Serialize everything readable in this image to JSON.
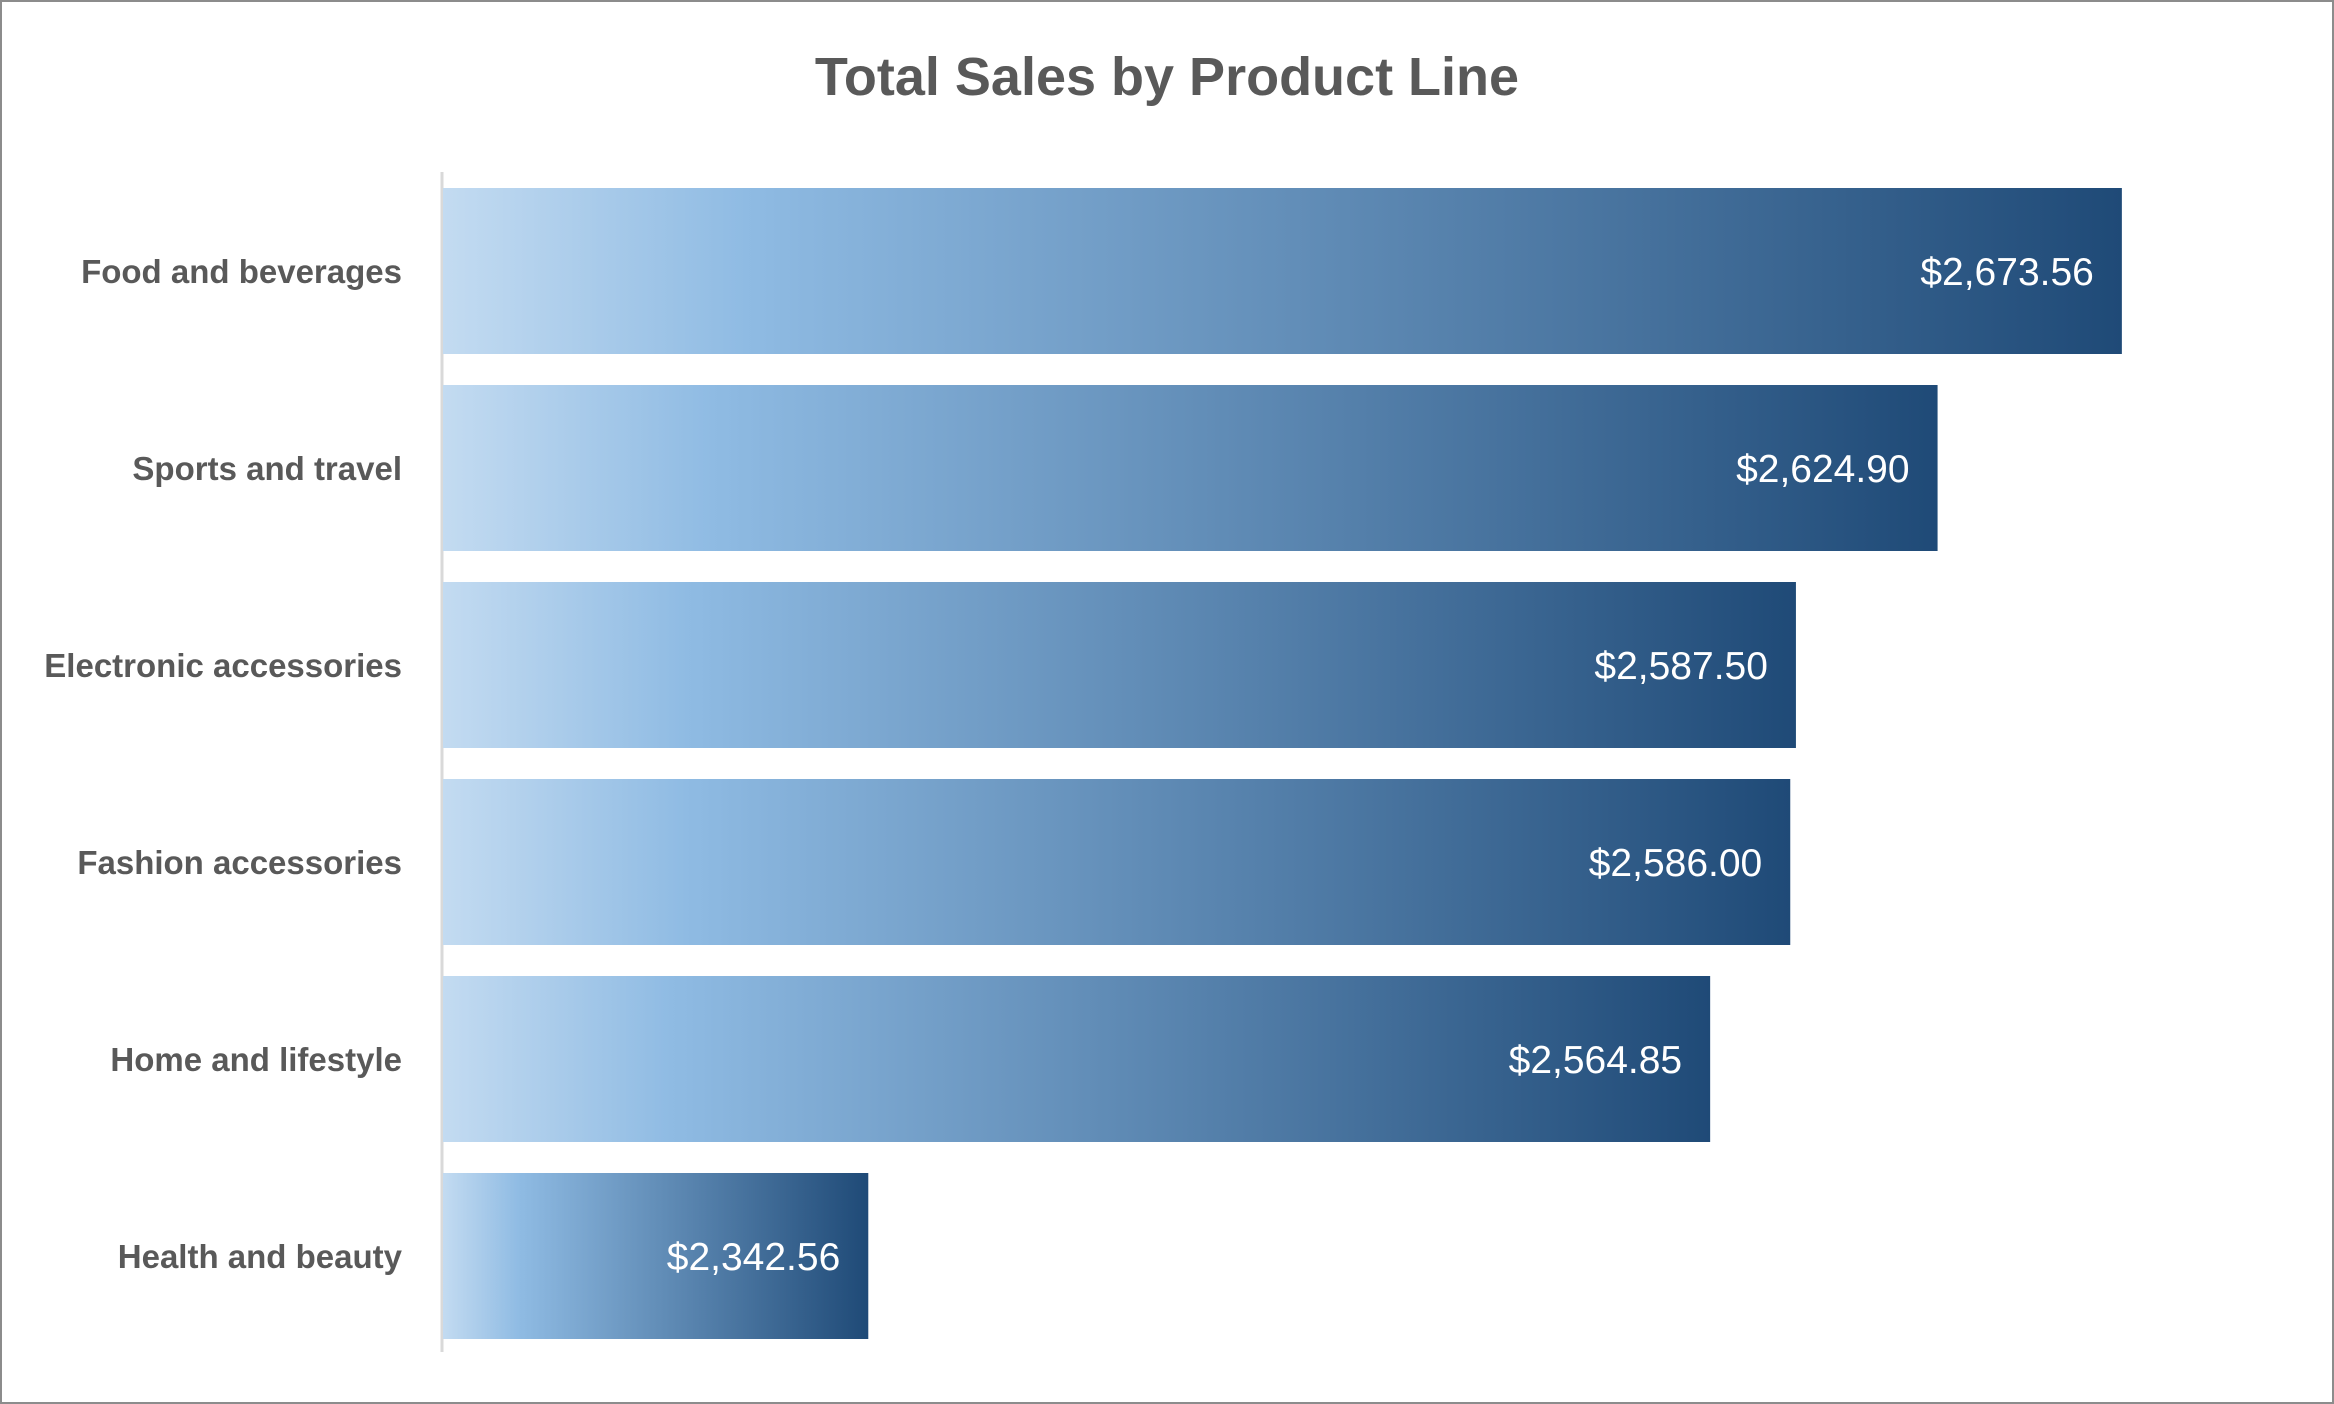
{
  "chart_data": {
    "type": "bar",
    "orientation": "horizontal",
    "title": "Total Sales by Product Line",
    "xlabel": "",
    "ylabel": "",
    "grid": false,
    "legend": "none",
    "categories": [
      "Food and beverages",
      "Sports and travel",
      "Electronic accessories",
      "Fashion accessories",
      "Home and lifestyle",
      "Health and beauty"
    ],
    "values": [
      2673.56,
      2624.9,
      2587.5,
      2586.0,
      2564.85,
      2342.56
    ],
    "value_labels": [
      "$2,673.56",
      "$2,624.90",
      "$2,587.50",
      "$2,586.00",
      "$2,564.85",
      "$2,342.56"
    ],
    "xlim": [
      2230,
      2700
    ],
    "colors": {
      "gradient_start": "#c3dbf1",
      "gradient_mid": "#8fbbe3",
      "gradient_end": "#1f4a77",
      "axis_line": "#d9d9d9",
      "border": "#8c8c8c"
    }
  }
}
